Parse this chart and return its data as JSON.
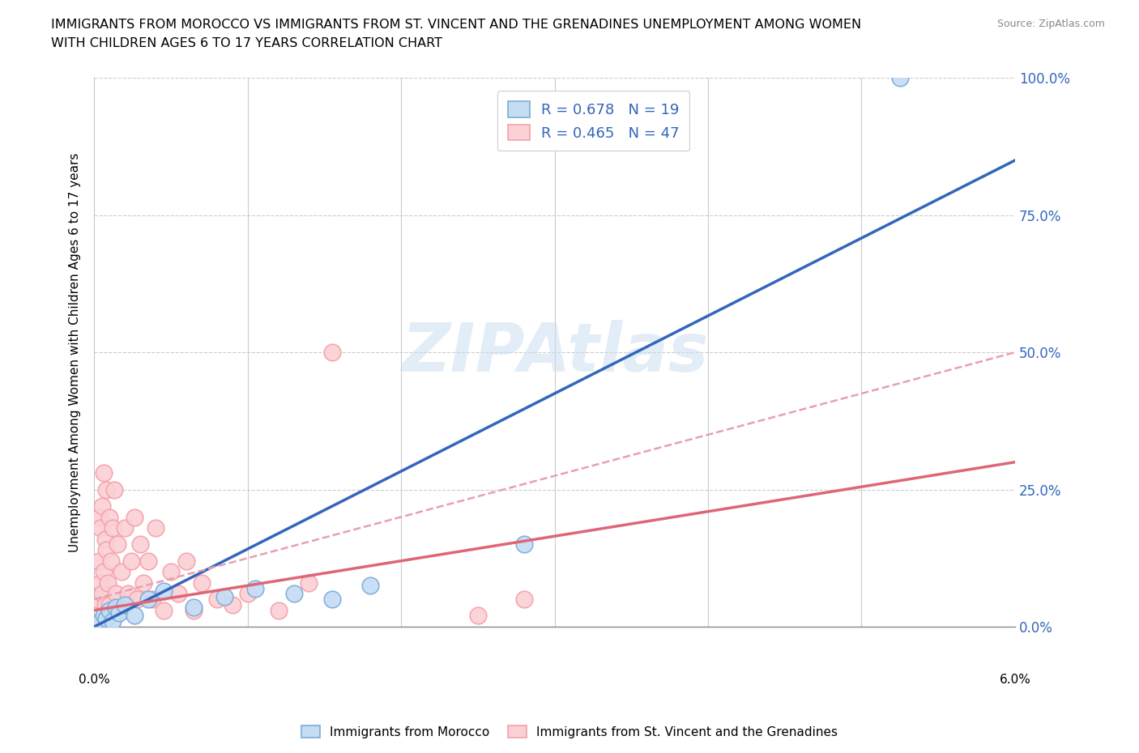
{
  "title_line1": "IMMIGRANTS FROM MOROCCO VS IMMIGRANTS FROM ST. VINCENT AND THE GRENADINES UNEMPLOYMENT AMONG WOMEN",
  "title_line2": "WITH CHILDREN AGES 6 TO 17 YEARS CORRELATION CHART",
  "source": "Source: ZipAtlas.com",
  "ylabel_label": "Unemployment Among Women with Children Ages 6 to 17 years",
  "watermark": "ZIPAtlas",
  "legend1_label": "Immigrants from Morocco",
  "legend2_label": "Immigrants from St. Vincent and the Grenadines",
  "R1": 0.678,
  "N1": 19,
  "R2": 0.465,
  "N2": 47,
  "color_morocco": "#c5dcf5",
  "color_morocco_edge": "#7aadd6",
  "color_morocco_line": "#3366bb",
  "color_svg_edge": "#f5a0a8",
  "color_svg": "#fad0d4",
  "color_svg_line": "#dd6677",
  "color_svg_dashed": "#e8a0b0",
  "xlim": [
    0.0,
    6.0
  ],
  "ylim": [
    0.0,
    100.0
  ],
  "morocco_x": [
    0.04,
    0.06,
    0.08,
    0.1,
    0.12,
    0.14,
    0.16,
    0.2,
    0.26,
    0.35,
    0.45,
    0.65,
    0.85,
    1.05,
    1.3,
    1.55,
    1.8,
    2.8,
    5.25
  ],
  "morocco_y": [
    1.0,
    2.0,
    1.5,
    3.0,
    1.0,
    3.5,
    2.5,
    4.0,
    2.0,
    5.0,
    6.5,
    3.5,
    5.5,
    7.0,
    6.0,
    5.0,
    7.5,
    15.0,
    100.0
  ],
  "svg_x": [
    0.02,
    0.03,
    0.03,
    0.04,
    0.04,
    0.05,
    0.05,
    0.06,
    0.06,
    0.07,
    0.07,
    0.08,
    0.08,
    0.09,
    0.1,
    0.1,
    0.11,
    0.12,
    0.13,
    0.14,
    0.15,
    0.16,
    0.18,
    0.2,
    0.22,
    0.24,
    0.26,
    0.28,
    0.3,
    0.32,
    0.35,
    0.38,
    0.4,
    0.45,
    0.5,
    0.55,
    0.6,
    0.65,
    0.7,
    0.8,
    0.9,
    1.0,
    1.2,
    1.4,
    1.55,
    2.5,
    2.8
  ],
  "svg_y": [
    5.0,
    12.0,
    20.0,
    8.0,
    18.0,
    6.0,
    22.0,
    10.0,
    28.0,
    4.0,
    16.0,
    14.0,
    25.0,
    8.0,
    20.0,
    4.0,
    12.0,
    18.0,
    25.0,
    6.0,
    15.0,
    3.0,
    10.0,
    18.0,
    6.0,
    12.0,
    20.0,
    5.0,
    15.0,
    8.0,
    12.0,
    5.0,
    18.0,
    3.0,
    10.0,
    6.0,
    12.0,
    3.0,
    8.0,
    5.0,
    4.0,
    6.0,
    3.0,
    8.0,
    50.0,
    2.0,
    5.0
  ],
  "morocco_line_x0": 0.0,
  "morocco_line_y0": 0.0,
  "morocco_line_x1": 6.0,
  "morocco_line_y1": 85.0,
  "svg_solid_x0": 0.0,
  "svg_solid_y0": 3.0,
  "svg_solid_x1": 6.0,
  "svg_solid_y1": 30.0,
  "svg_dashed_x0": 0.0,
  "svg_dashed_y0": 5.0,
  "svg_dashed_x1": 6.0,
  "svg_dashed_y1": 50.0
}
